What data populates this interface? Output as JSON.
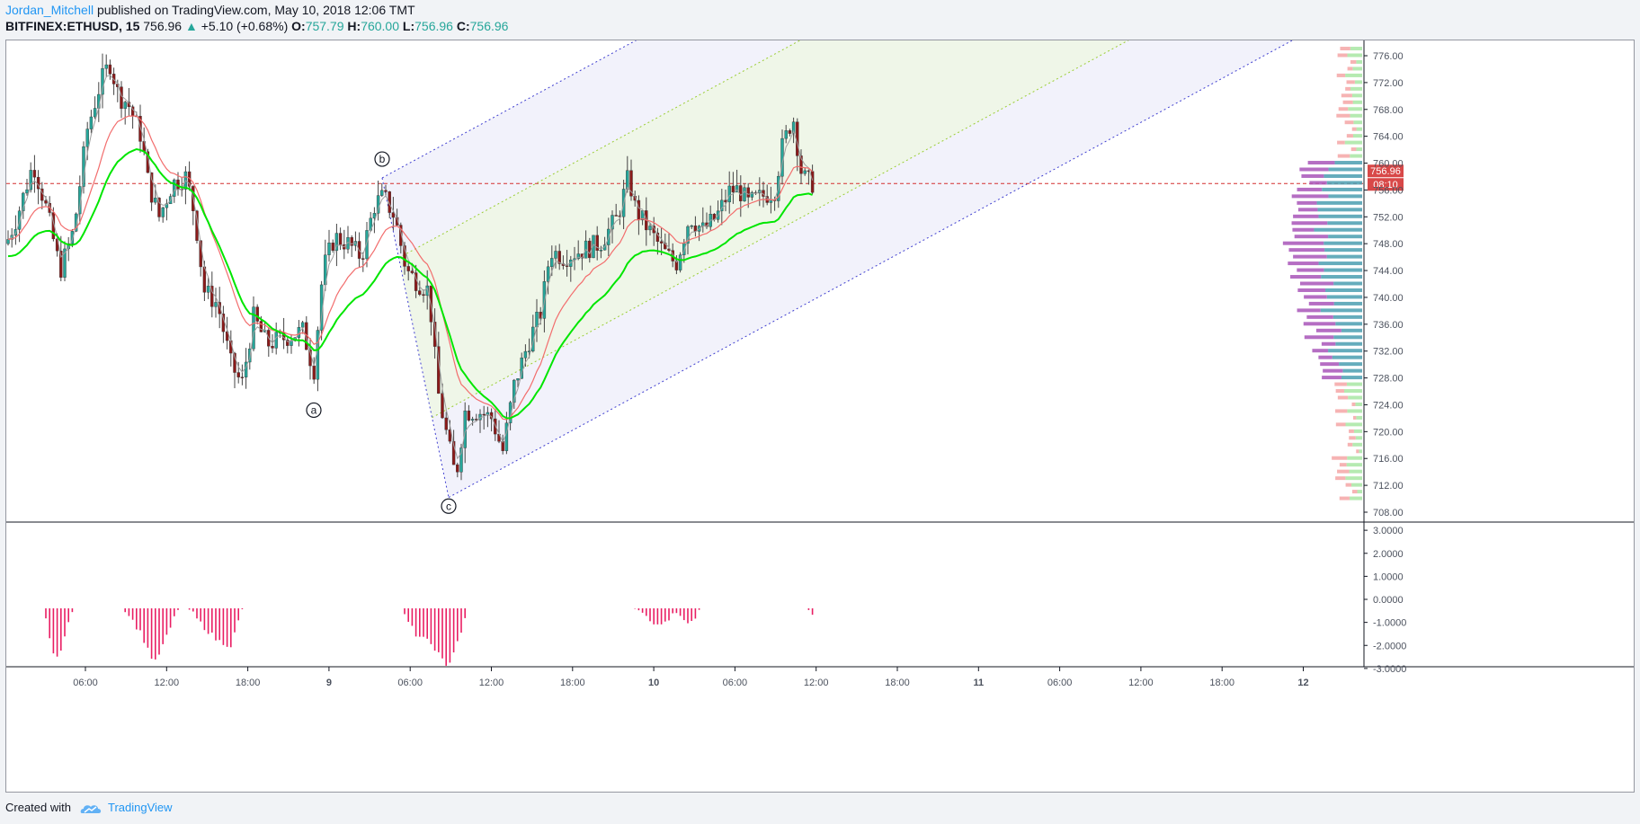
{
  "header": {
    "author": "Jordan_Mitchell",
    "published_text": "published on TradingView.com, May 10, 2018 12:06 TMT",
    "symbol": "BITFINEX:ETHUSD, 15",
    "last": "756.96",
    "change": "+5.10 (+0.68%)",
    "o_label": "O:",
    "o_value": "757.79",
    "h_label": "H:",
    "h_value": "760.00",
    "l_label": "L:",
    "l_value": "756.96",
    "c_label": "C:",
    "c_value": "756.96"
  },
  "footer": {
    "created_with": "Created with",
    "brand": "TradingView",
    "logo_icon": "tradingview-cloud-icon"
  },
  "chart_data": {
    "type": "candlestick",
    "symbol": "BITFINEX:ETHUSD",
    "interval": "15",
    "price_axis": {
      "ticks": [
        "776.00",
        "772.00",
        "768.00",
        "764.00",
        "760.00",
        "756.00",
        "752.00",
        "748.00",
        "744.00",
        "740.00",
        "736.00",
        "732.00",
        "728.00",
        "724.00",
        "720.00",
        "716.00",
        "712.00",
        "708.00"
      ],
      "range": [
        706.5,
        779.5
      ],
      "last_price_label": "756.96",
      "countdown_label": "08:10",
      "last_price": 756.96
    },
    "time_axis": {
      "ticks": [
        "06:00",
        "12:00",
        "18:00",
        "9",
        "06:00",
        "12:00",
        "18:00",
        "10",
        "06:00",
        "12:00",
        "18:00",
        "11",
        "06:00",
        "12:00",
        "18:00",
        "12"
      ],
      "bold_ticks": [
        "9",
        "10",
        "11",
        "12"
      ]
    },
    "oscillator": {
      "ticks": [
        "3.0000",
        "2.0000",
        "1.0000",
        "0.0000",
        "-1.0000",
        "-2.0000",
        "-3.0000"
      ],
      "range": [
        -3.2,
        3.2
      ],
      "color": "#e91e63"
    },
    "annotations": [
      {
        "label": "a",
        "price": 723.2
      },
      {
        "label": "b",
        "price": 760.6
      },
      {
        "label": "c",
        "price": 708.9
      }
    ],
    "pitchfork": {
      "points": [
        {
          "label": "a",
          "price": 725.8
        },
        {
          "label": "b",
          "price": 757.8
        },
        {
          "label": "c",
          "price": 710.2
        }
      ]
    },
    "series": [
      {
        "name": "ETHUSD",
        "color_up": "#26a69a",
        "color_down": "#8b1a1a"
      }
    ],
    "colors": {
      "fast_ma": "#00e600",
      "slow_ma": "#f26d6d",
      "price_line": "#d32f2f",
      "volume_profile_up": "#4a9eb0",
      "volume_profile_down": "#a855b8"
    }
  }
}
